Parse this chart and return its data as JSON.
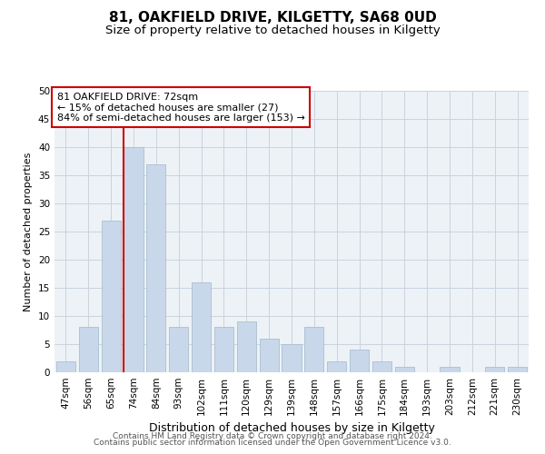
{
  "title1": "81, OAKFIELD DRIVE, KILGETTY, SA68 0UD",
  "title2": "Size of property relative to detached houses in Kilgetty",
  "xlabel": "Distribution of detached houses by size in Kilgetty",
  "ylabel": "Number of detached properties",
  "categories": [
    "47sqm",
    "56sqm",
    "65sqm",
    "74sqm",
    "84sqm",
    "93sqm",
    "102sqm",
    "111sqm",
    "120sqm",
    "129sqm",
    "139sqm",
    "148sqm",
    "157sqm",
    "166sqm",
    "175sqm",
    "184sqm",
    "193sqm",
    "203sqm",
    "212sqm",
    "221sqm",
    "230sqm"
  ],
  "values": [
    2,
    8,
    27,
    40,
    37,
    8,
    16,
    8,
    9,
    6,
    5,
    8,
    2,
    4,
    2,
    1,
    0,
    1,
    0,
    1,
    1
  ],
  "bar_color": "#c8d8ea",
  "bar_edge_color": "#aabfcf",
  "highlight_line_index": 2.575,
  "highlight_line_color": "#cc0000",
  "annotation_line1": "81 OAKFIELD DRIVE: 72sqm",
  "annotation_line2": "← 15% of detached houses are smaller (27)",
  "annotation_line3": "84% of semi-detached houses are larger (153) →",
  "annotation_box_color": "#ffffff",
  "annotation_box_edge": "#cc0000",
  "ylim": [
    0,
    50
  ],
  "yticks": [
    0,
    5,
    10,
    15,
    20,
    25,
    30,
    35,
    40,
    45,
    50
  ],
  "grid_color": "#c8d4de",
  "background_color": "#edf2f7",
  "footer1": "Contains HM Land Registry data © Crown copyright and database right 2024.",
  "footer2": "Contains public sector information licensed under the Open Government Licence v3.0.",
  "title1_fontsize": 11,
  "title2_fontsize": 9.5,
  "xlabel_fontsize": 9,
  "ylabel_fontsize": 8,
  "tick_fontsize": 7.5,
  "annotation_fontsize": 8,
  "footer_fontsize": 6.5
}
